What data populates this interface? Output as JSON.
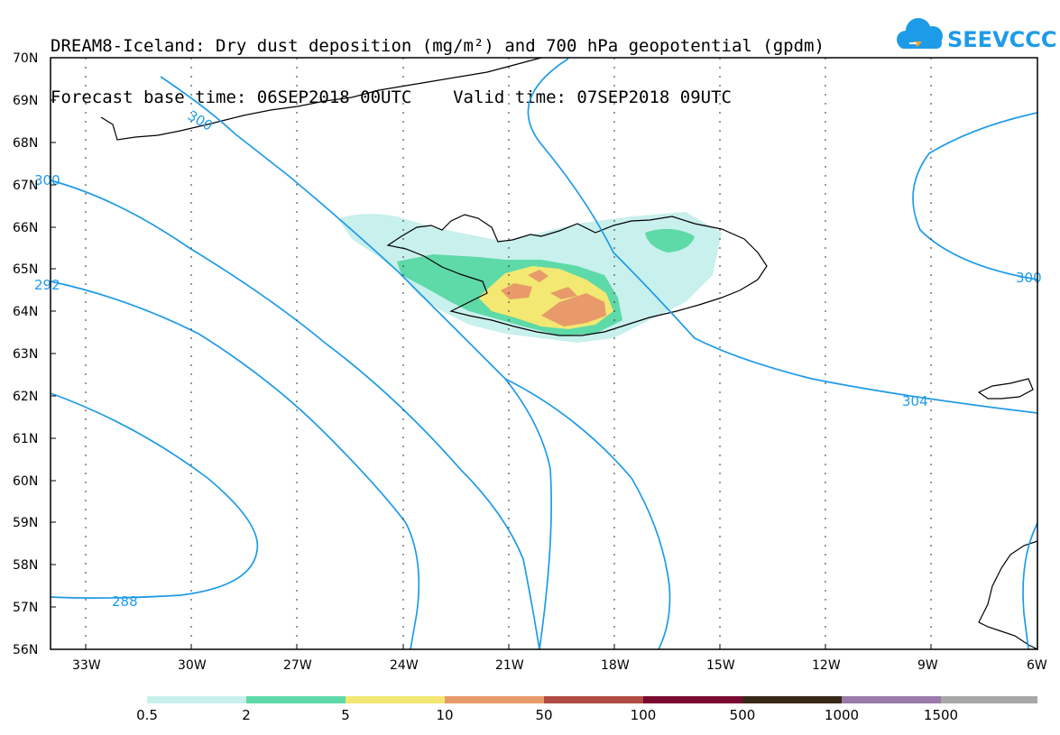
{
  "header": {
    "title_line1": "DREAM8-Iceland: Dry dust deposition (mg/m²) and 700 hPa geopotential (gpdm)",
    "title_line2": "Forecast base time: 06SEP2018 00UTC    Valid time: 07SEP2018 09UTC",
    "logo_text": "SEEVCCC"
  },
  "axes": {
    "lat_labels": [
      "70N",
      "69N",
      "68N",
      "67N",
      "66N",
      "65N",
      "64N",
      "63N",
      "62N",
      "61N",
      "60N",
      "59N",
      "58N",
      "57N",
      "56N"
    ],
    "lon_labels": [
      "33W",
      "30W",
      "27W",
      "24W",
      "21W",
      "18W",
      "15W",
      "12W",
      "9W",
      "6W"
    ]
  },
  "contour_labels": [
    "300",
    "304",
    "288",
    "292",
    "300",
    "300"
  ],
  "legend": {
    "labels": [
      "0.5",
      "2",
      "5",
      "10",
      "50",
      "100",
      "500",
      "1000",
      "1500"
    ],
    "colors": [
      "#c8f0ec",
      "#5ed9a8",
      "#f2e872",
      "#e89a6a",
      "#b04c44",
      "#7a0a30",
      "#382818",
      "#9a7aa8",
      "#a8a8a8"
    ]
  },
  "colors": {
    "contour": "#1e9be8",
    "logo": "#1e9be8",
    "logo_accent": "#f5a623",
    "dust_levels": [
      "#c8f0ec",
      "#5ed9a8",
      "#f2e872",
      "#e89a6a"
    ]
  }
}
